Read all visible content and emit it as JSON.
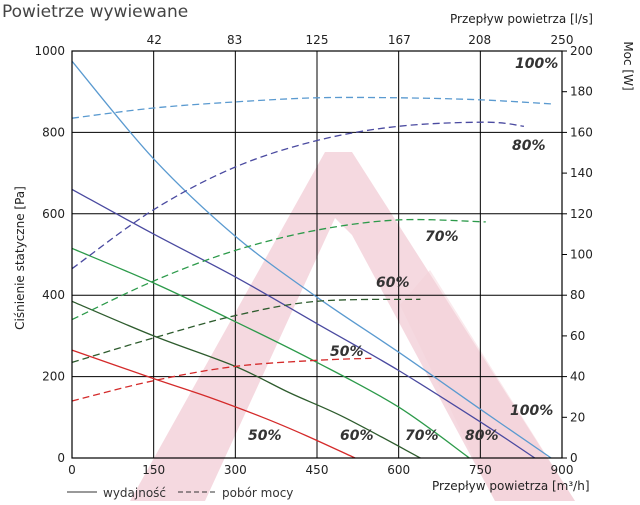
{
  "title": "Powietrze wywiewane",
  "chart_data": {
    "type": "line",
    "title": "Powietrze wywiewane",
    "xlabel": "Przepływ powietrza [m³/h]",
    "x2label": "Przepływ powietrza [l/s]",
    "ylabel": "Ciśnienie statyczne [Pa]",
    "y2label": "Moc [W]",
    "xlim": [
      0,
      900
    ],
    "ylim": [
      0,
      1000
    ],
    "y2lim": [
      0,
      200
    ],
    "xticks": [
      "0",
      "150",
      "300",
      "450",
      "600",
      "750",
      "900"
    ],
    "x2ticks": [
      "42",
      "83",
      "125",
      "167",
      "208",
      "250"
    ],
    "yticks": [
      "0",
      "200",
      "400",
      "600",
      "800",
      "1000"
    ],
    "y2ticks": [
      "0",
      "20",
      "40",
      "60",
      "80",
      "100",
      "120",
      "140",
      "160",
      "180",
      "200"
    ],
    "grid": true,
    "legend": {
      "solid": "wydajność",
      "dashed": "pobór mocy",
      "placement": "bottom-left"
    },
    "colors": {
      "50%": "#d42a2a",
      "60%": "#2e5c2e",
      "70%": "#2c9a4a",
      "80%": "#4a4aa0",
      "100%": "#5a9ad0",
      "watermark": "#f3d0d8",
      "grid": "#000000"
    },
    "series": [
      {
        "name": "50%",
        "kind": "wydajność",
        "axis": "left",
        "x": [
          0,
          150,
          250,
          350,
          430,
          520
        ],
        "y": [
          265,
          195,
          150,
          100,
          55,
          0
        ]
      },
      {
        "name": "60%",
        "kind": "wydajność",
        "axis": "left",
        "x": [
          0,
          150,
          300,
          400,
          500,
          640
        ],
        "y": [
          385,
          300,
          225,
          160,
          100,
          0
        ]
      },
      {
        "name": "70%",
        "kind": "wydajność",
        "axis": "left",
        "x": [
          0,
          150,
          300,
          450,
          600,
          730
        ],
        "y": [
          515,
          430,
          335,
          235,
          125,
          0
        ]
      },
      {
        "name": "80%",
        "kind": "wydajność",
        "axis": "left",
        "x": [
          0,
          150,
          300,
          450,
          600,
          760,
          850
        ],
        "y": [
          660,
          550,
          445,
          330,
          215,
          80,
          0
        ]
      },
      {
        "name": "100%",
        "kind": "wydajność",
        "axis": "left",
        "x": [
          0,
          150,
          300,
          450,
          600,
          750,
          880
        ],
        "y": [
          975,
          735,
          545,
          395,
          260,
          120,
          0
        ]
      },
      {
        "name": "50%",
        "kind": "pobór mocy",
        "axis": "right",
        "x": [
          0,
          150,
          300,
          450,
          550
        ],
        "y": [
          28,
          38,
          45,
          48,
          49
        ]
      },
      {
        "name": "60%",
        "kind": "pobór mocy",
        "axis": "right",
        "x": [
          0,
          150,
          300,
          450,
          640
        ],
        "y": [
          47,
          59,
          70,
          77,
          78
        ]
      },
      {
        "name": "70%",
        "kind": "pobór mocy",
        "axis": "right",
        "x": [
          0,
          150,
          300,
          450,
          600,
          760
        ],
        "y": [
          68,
          87,
          102,
          112,
          117,
          116
        ]
      },
      {
        "name": "80%",
        "kind": "pobór mocy",
        "axis": "right",
        "x": [
          0,
          150,
          300,
          450,
          600,
          760,
          830
        ],
        "y": [
          93,
          122,
          143,
          156,
          163,
          165,
          163
        ]
      },
      {
        "name": "100%",
        "kind": "pobór mocy",
        "axis": "right",
        "x": [
          0,
          150,
          300,
          450,
          600,
          750,
          880
        ],
        "y": [
          167,
          172,
          175,
          177,
          177,
          176,
          174
        ]
      }
    ],
    "annotations": {
      "bottom": [
        "50%",
        "60%",
        "70%",
        "80%",
        "100%"
      ],
      "power": [
        "100%",
        "80%",
        "70%",
        "60%",
        "50%"
      ]
    }
  }
}
